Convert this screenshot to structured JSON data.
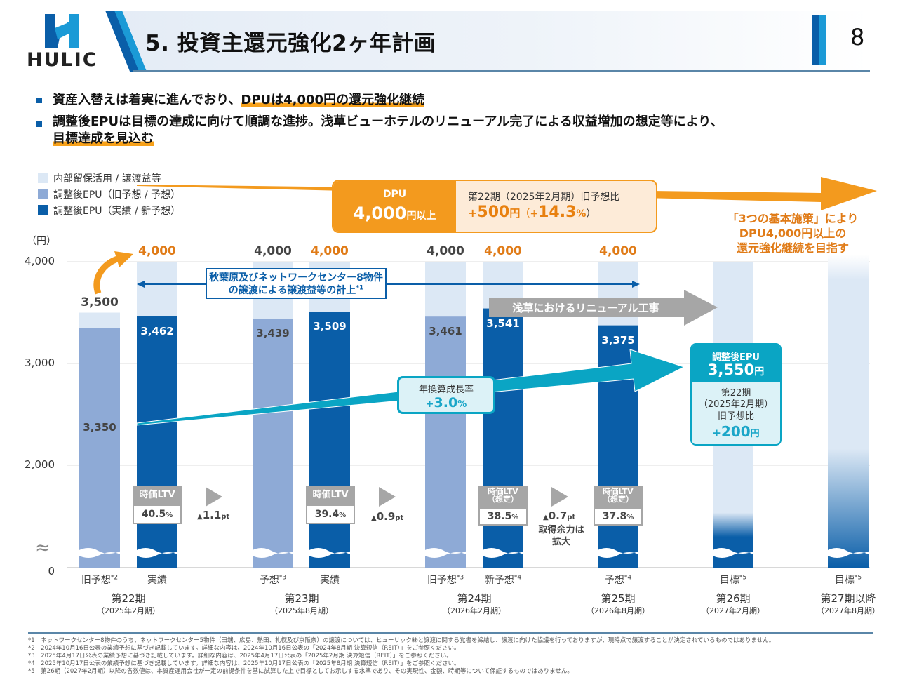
{
  "header": {
    "title": "5. 投資主還元強化2ヶ年計画",
    "logo_text": "HULIC",
    "page_number": "8"
  },
  "bullets": [
    {
      "plain": "資産入替えは着実に進んでおり、",
      "highlight": "DPUは4,000円の還元強化継続"
    },
    {
      "plain": "調整後EPUは目標の達成に向けて順調な進捗。浅草ビューホテルのリニューアル完了による収益増加の想定等により、",
      "highlight": "目標達成を見込む"
    }
  ],
  "colors": {
    "retained": "#dce8f5",
    "epu_old_forecast": "#8eaad6",
    "epu_actual": "#0a5ea8",
    "accent_orange": "#f39a1e",
    "accent_teal": "#0aa5c4",
    "gray": "#a6a6a6"
  },
  "legend": [
    {
      "label": "内部留保活用 / 譲渡益等",
      "color": "#dce8f5"
    },
    {
      "label": "調整後EPU（旧予想 / 予想）",
      "color": "#8eaad6"
    },
    {
      "label": "調整後EPU（実績 / 新予想）",
      "color": "#0a5ea8"
    }
  ],
  "chart_data": {
    "type": "bar",
    "stacked": true,
    "ylabel": "（円）",
    "y_ticks": [
      "0",
      "2,000",
      "3,000",
      "4,000"
    ],
    "y_axis_broken": true,
    "axis_break_symbol": "≈",
    "ylim": [
      0,
      4000
    ],
    "bars": [
      {
        "id": "p22-old",
        "category": "旧予想",
        "note": "*2",
        "period": "第22期",
        "period_sub": "（2025年2月期）",
        "series": "調整後EPU（旧予想 / 予想）",
        "epu": 3350,
        "total": 3500,
        "epu_label": "3,350",
        "total_label": "3,500",
        "total_color": "dark"
      },
      {
        "id": "p22-act",
        "category": "実績",
        "note": "",
        "period": "第22期",
        "period_sub": "（2025年2月期）",
        "series": "調整後EPU（実績 / 新予想）",
        "epu": 3462,
        "total": 4000,
        "epu_label": "3,462",
        "total_label": "4,000",
        "total_color": "orange"
      },
      {
        "id": "p23-fc",
        "category": "予想",
        "note": "*3",
        "period": "第23期",
        "period_sub": "（2025年8月期）",
        "series": "調整後EPU（旧予想 / 予想）",
        "epu": 3439,
        "total": 4000,
        "epu_label": "3,439",
        "total_label": "4,000",
        "total_color": "dark"
      },
      {
        "id": "p23-act",
        "category": "実績",
        "note": "",
        "period": "第23期",
        "period_sub": "（2025年8月期）",
        "series": "調整後EPU（実績 / 新予想）",
        "epu": 3509,
        "total": 4000,
        "epu_label": "3,509",
        "total_label": "4,000",
        "total_color": "orange"
      },
      {
        "id": "p24-old",
        "category": "旧予想",
        "note": "*3",
        "period": "第24期",
        "period_sub": "（2026年2月期）",
        "series": "調整後EPU（旧予想 / 予想）",
        "epu": 3461,
        "total": 4000,
        "epu_label": "3,461",
        "total_label": "4,000",
        "total_color": "dark"
      },
      {
        "id": "p24-new",
        "category": "新予想",
        "note": "*4",
        "period": "第24期",
        "period_sub": "（2026年2月期）",
        "series": "調整後EPU（実績 / 新予想）",
        "epu": 3541,
        "total": 4000,
        "epu_label": "3,541",
        "total_label": "4,000",
        "total_color": "orange"
      },
      {
        "id": "p25-fc",
        "category": "予想",
        "note": "*4",
        "period": "第25期",
        "period_sub": "（2026年8月期）",
        "series": "調整後EPU（実績 / 新予想）",
        "epu": 3375,
        "total": 4000,
        "epu_label": "3,375",
        "total_label": "4,000",
        "total_color": "orange"
      },
      {
        "id": "p26-tgt",
        "category": "目標",
        "note": "*5",
        "period": "第26期",
        "period_sub": "（2027年2月期）",
        "series": "調整後EPU（実績 / 新予想）",
        "epu": 3550,
        "total": 4000,
        "epu_label": "",
        "total_label": "",
        "total_color": "none"
      },
      {
        "id": "p27-tgt",
        "category": "目標",
        "note": "*5",
        "period": "第27期以降",
        "period_sub": "（2027年8月期）",
        "series": "調整後EPU（実績 / 新予想）",
        "epu": 3550,
        "total": 4000,
        "epu_label": "",
        "total_label": "",
        "total_color": "none"
      }
    ],
    "periods": [
      {
        "label": "第22期",
        "sub": "（2025年2月期）"
      },
      {
        "label": "第23期",
        "sub": "（2025年8月期）"
      },
      {
        "label": "第24期",
        "sub": "（2026年2月期）"
      },
      {
        "label": "第25期",
        "sub": "（2026年8月期）"
      },
      {
        "label": "第26期",
        "sub": "（2027年2月期）"
      },
      {
        "label": "第27期以降",
        "sub": "（2027年8月期）"
      }
    ]
  },
  "dpu_box": {
    "label": "DPU",
    "value_main": "4,000",
    "value_unit": "円以上",
    "compare_title": "第22期（2025年2月期）旧予想比",
    "diff_sign": "+",
    "diff_value": "500",
    "diff_unit": "円",
    "pct_open": "（+",
    "pct_value": "14.3",
    "pct_unit": "%",
    "pct_close": "）"
  },
  "policy_text": [
    "「3つの基本施策」により",
    "DPU4,000円以上の",
    "還元強化継続を目指す"
  ],
  "transfer_box": {
    "line1": "秋葉原及びネットワークセンター8物件",
    "line2": "の譲渡による譲渡益等の計上",
    "note": "*1"
  },
  "asakusa_label": "浅草におけるリニューアル工事",
  "growth_callout": {
    "label": "年換算成長率",
    "sign": "+",
    "value": "3.0",
    "unit": "%"
  },
  "epu_target": {
    "title": "調整後EPU",
    "value": "3,550",
    "unit": "円",
    "cmp_line1": "第22期",
    "cmp_line2": "（2025年2月期）",
    "cmp_line3": "旧予想比",
    "diff_sign": "+",
    "diff_value": "200",
    "diff_unit": "円"
  },
  "ltv": [
    {
      "head": "時価LTV",
      "head2": "",
      "value": "40.5",
      "unit": "%"
    },
    {
      "head": "時価LTV",
      "head2": "",
      "value": "39.4",
      "unit": "%"
    },
    {
      "head": "時価LTV",
      "head2": "（想定）",
      "value": "38.5",
      "unit": "%"
    },
    {
      "head": "時価LTV",
      "head2": "（想定）",
      "value": "37.8",
      "unit": "%"
    }
  ],
  "ltv_deltas": [
    {
      "mark": "▲",
      "value": "1.1",
      "unit": "pt",
      "note": ""
    },
    {
      "mark": "▲",
      "value": "0.9",
      "unit": "pt",
      "note": ""
    },
    {
      "mark": "▲",
      "value": "0.7",
      "unit": "pt",
      "note_line1": "取得余力は",
      "note_line2": "拡大"
    }
  ],
  "footnotes": [
    "*1　ネットワークセンター8物件のうち、ネットワークセンター5物件（田端、広島、熱田、札幌及び京阪奈）の譲渡については、ヒューリック㈱と譲渡に関する覚書を締結し、譲渡に向けた協議を行っておりますが、現時点で譲渡することが決定されているものではありません。",
    "*2　2024年10月16日公表の業績予想に基づき記載しています。詳細な内容は、2024年10月16日公表の「2024年8月期 決算短信（REIT）」をご参照ください。",
    "*3　2025年4月17日公表の業績予想に基づき記載しています。詳細な内容は、2025年4月17日公表の「2025年2月期 決算短信（REIT）」をご参照ください。",
    "*4　2025年10月17日公表の業績予想に基づき記載しています。詳細な内容は、2025年10月17日公表の「2025年8月期 決算短信（REIT）」をご参照ください。",
    "*5　第26期（2027年2月期）以降の各数値は、本資産運用会社が一定の前提条件を基に試算した上で目標としてお示しする水準であり、その実現性、金額、時期等について保証するものではありません。"
  ]
}
